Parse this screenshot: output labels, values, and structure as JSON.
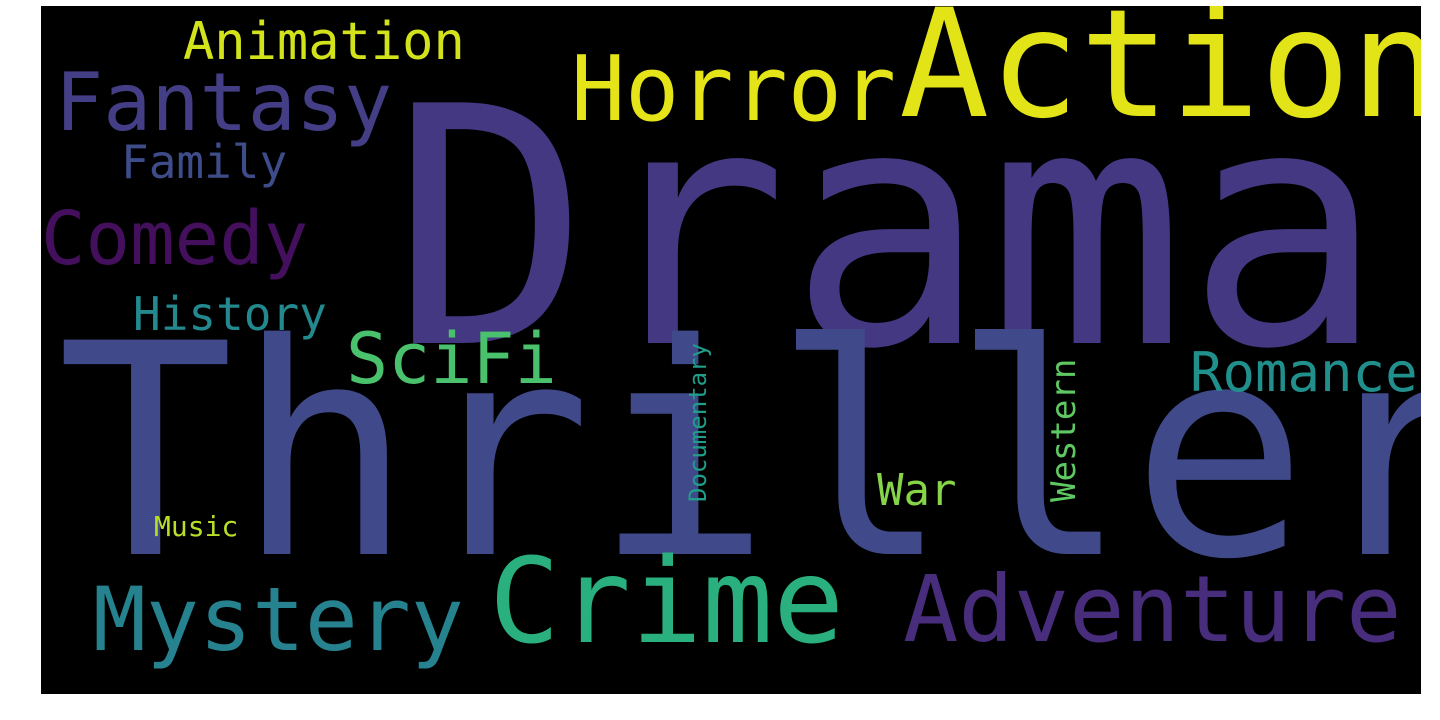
{
  "background_color": "#000000",
  "words": {
    "drama": {
      "text": "Drama",
      "color": "#453882"
    },
    "thriller": {
      "text": "Thriller",
      "color": "#404a8b"
    },
    "action": {
      "text": "Action",
      "color": "#e2e418"
    },
    "horror": {
      "text": "Horror",
      "color": "#e5e419"
    },
    "crime": {
      "text": "Crime",
      "color": "#2ab07f"
    },
    "adventure": {
      "text": "Adventure",
      "color": "#472d7b"
    },
    "mystery": {
      "text": "Mystery",
      "color": "#26828e"
    },
    "fantasy": {
      "text": "Fantasy",
      "color": "#433e85"
    },
    "comedy": {
      "text": "Comedy",
      "color": "#440f5c"
    },
    "animation": {
      "text": "Animation",
      "color": "#d2e21b"
    },
    "family": {
      "text": "Family",
      "color": "#3e4c8a"
    },
    "history": {
      "text": "History",
      "color": "#23898e"
    },
    "scifi": {
      "text": "SciFi",
      "color": "#4ac16d"
    },
    "romance": {
      "text": "Romance",
      "color": "#21908d"
    },
    "war": {
      "text": "War",
      "color": "#86d549"
    },
    "music": {
      "text": "Music",
      "color": "#b8de29"
    },
    "documentary": {
      "text": "Documentary",
      "color": "#1f9e89"
    },
    "western": {
      "text": "Western",
      "color": "#5ec962"
    }
  }
}
